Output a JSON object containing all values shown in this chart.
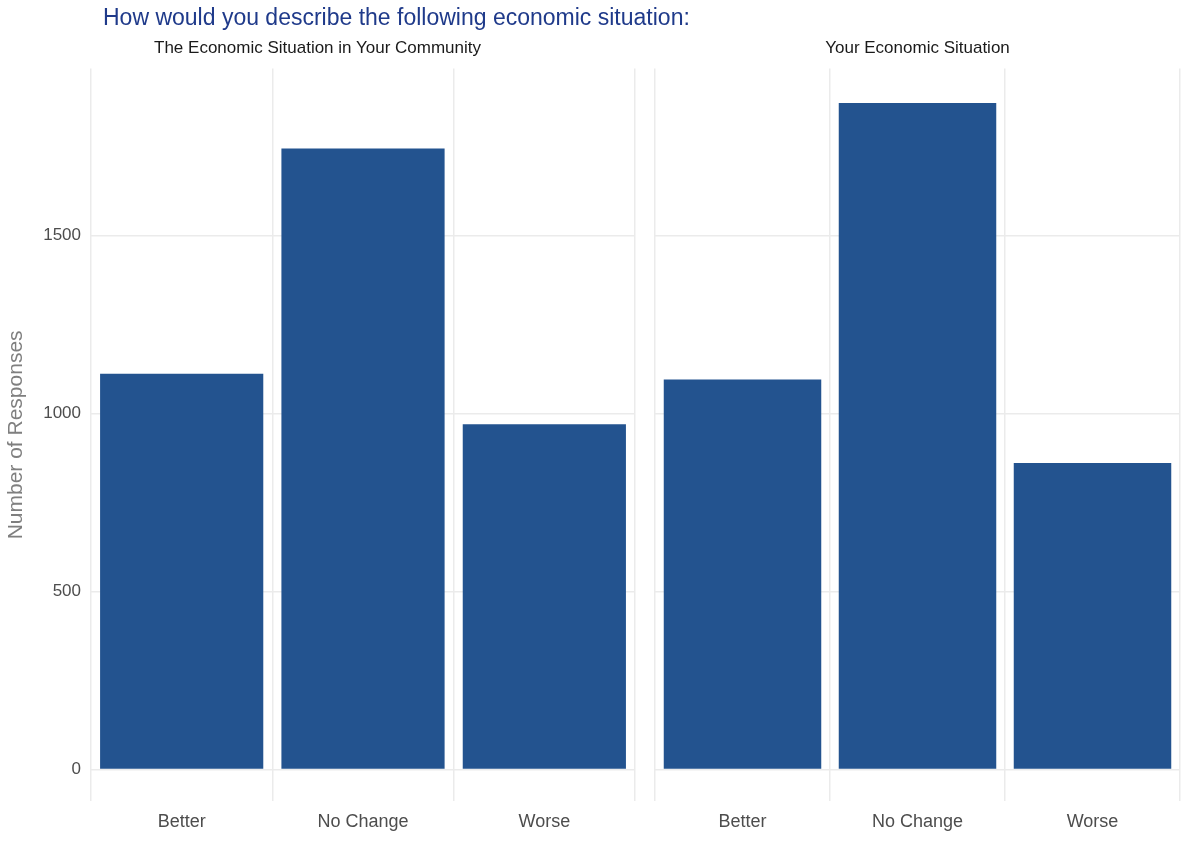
{
  "chart_data": [
    {
      "type": "bar",
      "title": "How would you describe the following economic situation:",
      "subtitle": "The Economic Situation in Your Community",
      "ylabel": "Number of Responses",
      "categories": [
        "Better",
        "No Change",
        "Worse"
      ],
      "values": [
        1112,
        1745,
        970
      ],
      "color": "#23538f",
      "ylim": [
        -90,
        1970
      ],
      "yticks": [
        0,
        500,
        1000,
        1500
      ],
      "grid": true
    },
    {
      "type": "bar",
      "subtitle": "Your Economic Situation",
      "categories": [
        "Better",
        "No Change",
        "Worse"
      ],
      "values": [
        1096,
        1873,
        861
      ],
      "color": "#23538f",
      "ylim": [
        -90,
        1970
      ],
      "yticks": [
        0,
        500,
        1000,
        1500
      ],
      "grid": true,
      "tick_labels": "x"
    }
  ]
}
